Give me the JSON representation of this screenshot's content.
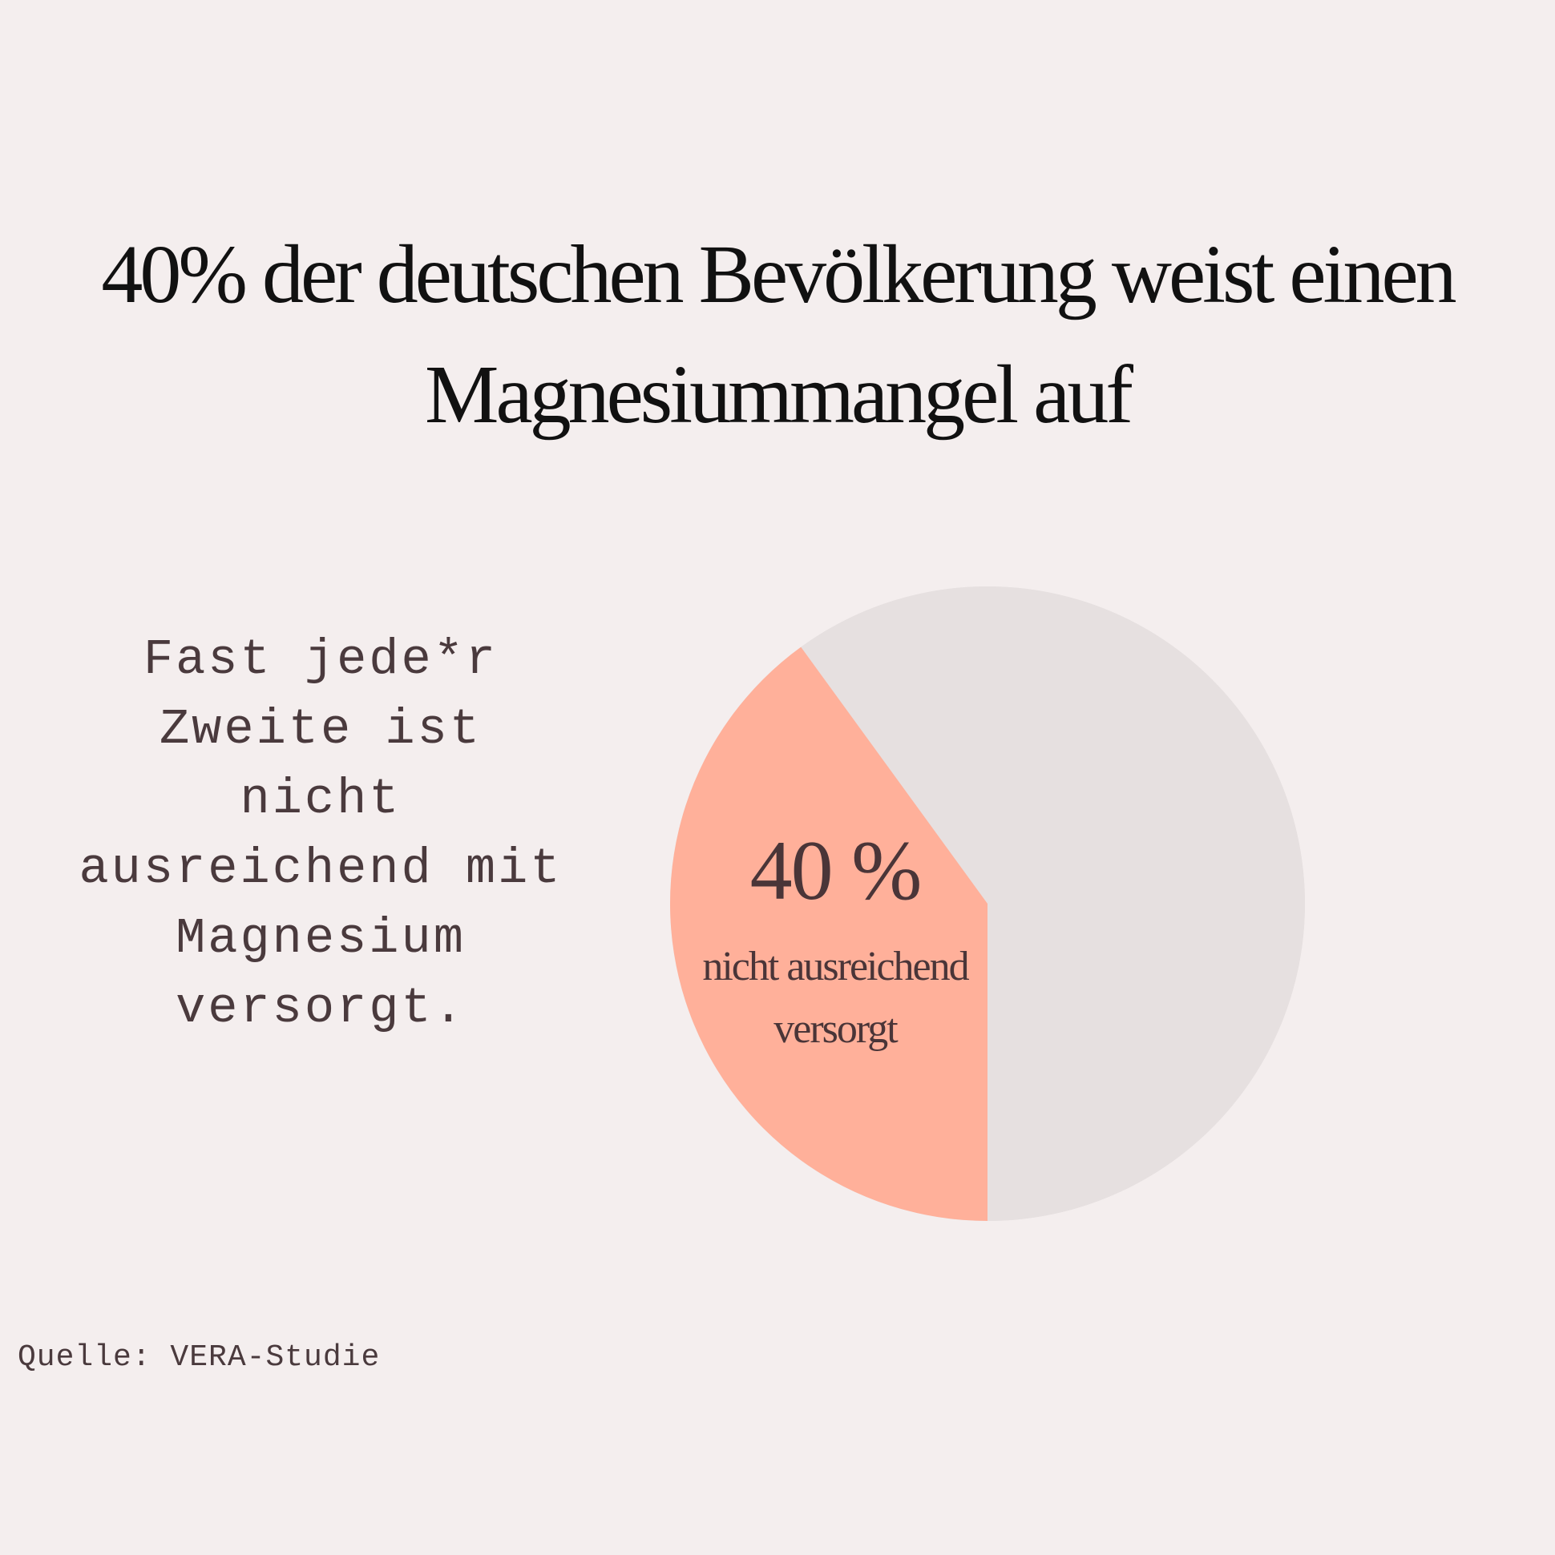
{
  "colors": {
    "background": "#f4eeee",
    "highlight_slice": "#ffb09a",
    "rest_slice": "#e6e0e0",
    "text_dark": "#111111",
    "text_brown": "#4a3a3d"
  },
  "title": {
    "line1": "40% der deutschen Bevölkerung weist einen",
    "line2": "Magnesiummangel auf"
  },
  "side_text": "Fast jede*r\nZweite ist\nnicht\nausreichend mit\nMagnesium\nversorgt.",
  "source": "Quelle: VERA-Studie",
  "chart_data": {
    "type": "pie",
    "title": "40% der deutschen Bevölkerung weist einen Magnesiummangel auf",
    "slices": [
      {
        "label": "nicht ausreichend versorgt",
        "value": 40,
        "color": "#ffb09a"
      },
      {
        "label": "",
        "value": 60,
        "color": "#e6e0e0"
      }
    ],
    "annotation": {
      "value_text": "40 %",
      "label_line1": "nicht ausreichend",
      "label_line2": "versorgt"
    }
  }
}
